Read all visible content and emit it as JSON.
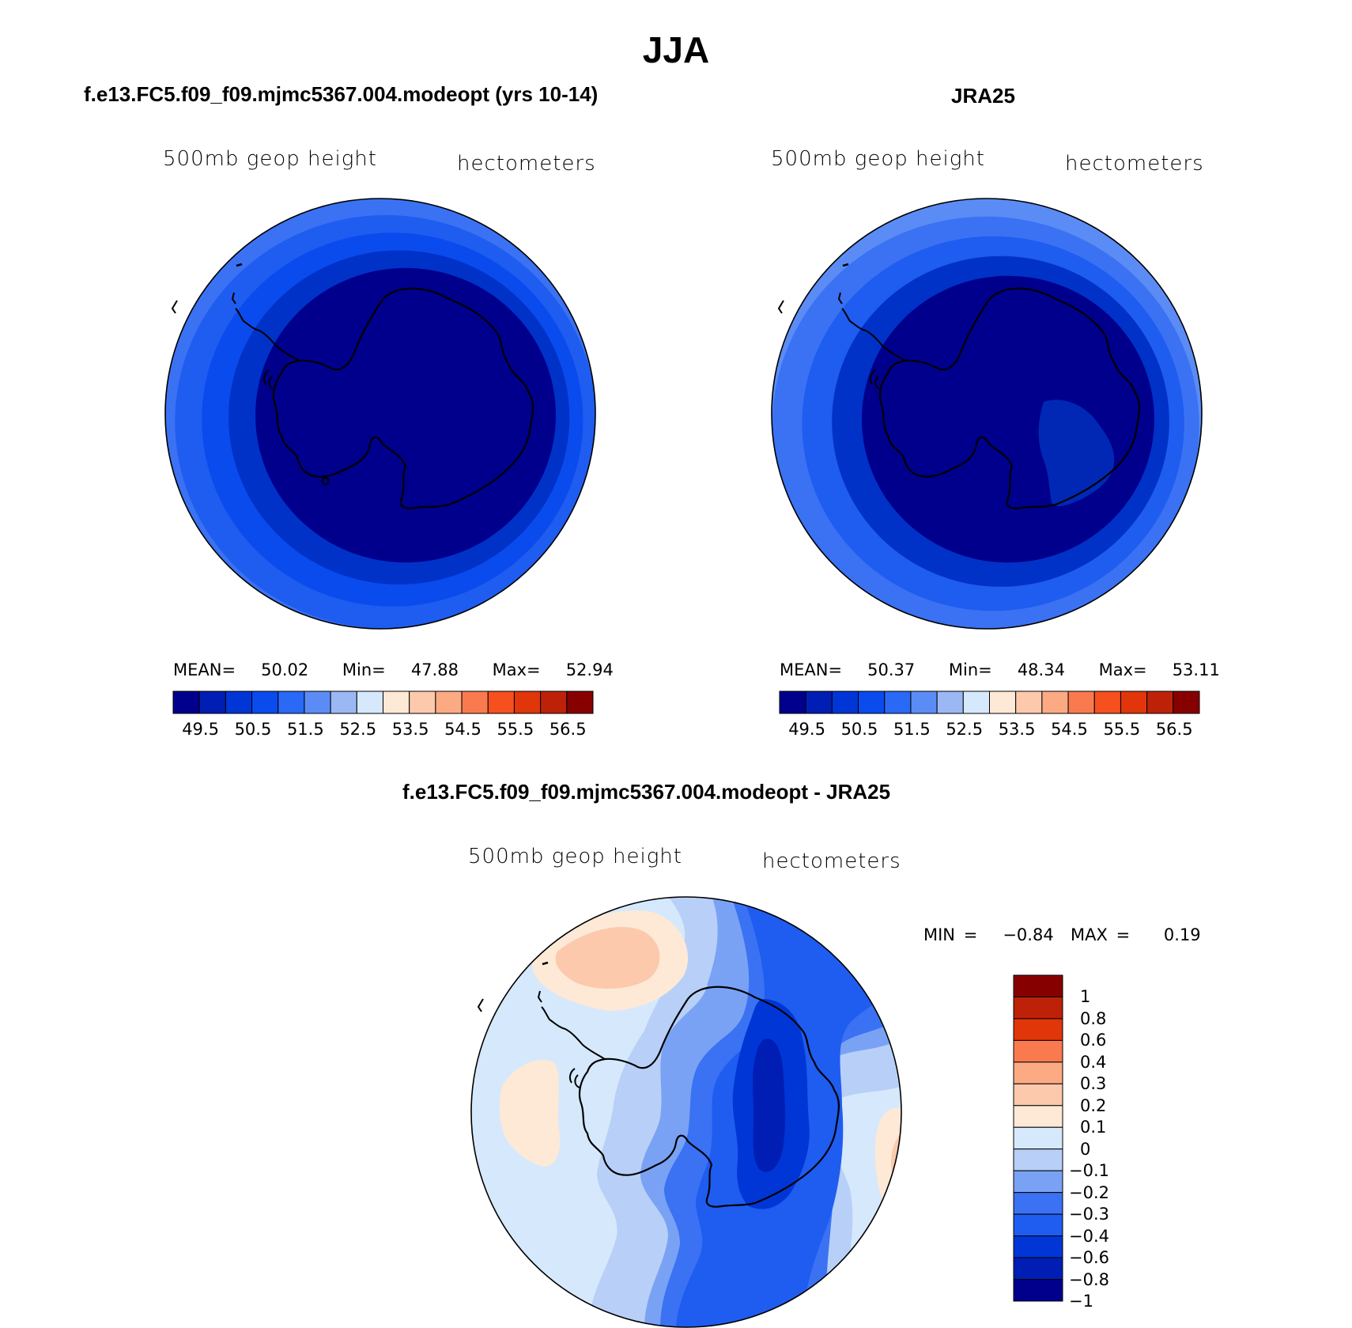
{
  "figure": {
    "title": "JJA"
  },
  "panels": [
    {
      "id": "model",
      "title": "f.e13.FC5.f09_f09.mjmc5367.004.modeopt (yrs 10-14)",
      "variable_label": "500mb  geop  height",
      "units_label": "hectometers",
      "stats": {
        "mean_label": "MEAN=",
        "mean": "50.02",
        "min_label": "Min=",
        "min": "47.88",
        "max_label": "Max=",
        "max": "52.94"
      },
      "colorbar": {
        "orientation": "horizontal",
        "colors": [
          "#00008c",
          "#001eb4",
          "#0036d6",
          "#0a4bee",
          "#2a68f6",
          "#5b8cf5",
          "#9bb8f5",
          "#d6e8fb",
          "#fde9d6",
          "#fcc9ac",
          "#fbaa83",
          "#f97a4f",
          "#f6501f",
          "#e0360a",
          "#bd2208",
          "#870000"
        ],
        "tick_labels": [
          "49.5",
          "50.5",
          "51.5",
          "52.5",
          "53.5",
          "54.5",
          "55.5",
          "56.5"
        ]
      },
      "map": {
        "projection": "south-polar-stereographic",
        "field": "500mb geopotential height, concentric contours decreasing toward the pole",
        "rings": [
          {
            "color": "#d6e8fb"
          },
          {
            "color": "#b8d0f8"
          },
          {
            "color": "#9bb8f5"
          },
          {
            "color": "#7aa2f4"
          },
          {
            "color": "#5b8cf5"
          },
          {
            "color": "#3a72f3"
          },
          {
            "color": "#1f5cf0"
          },
          {
            "color": "#0a4bee"
          },
          {
            "color": "#0032c8"
          },
          {
            "color": "#00008c"
          }
        ]
      }
    },
    {
      "id": "obs",
      "title": "JRA25",
      "variable_label": "500mb  geop  height",
      "units_label": "hectometers",
      "stats": {
        "mean_label": "MEAN=",
        "mean": "50.37",
        "min_label": "Min=",
        "min": "48.34",
        "max_label": "Max=",
        "max": "53.11"
      },
      "colorbar": {
        "orientation": "horizontal",
        "colors": [
          "#00008c",
          "#001eb4",
          "#0036d6",
          "#0a4bee",
          "#2a68f6",
          "#5b8cf5",
          "#9bb8f5",
          "#d6e8fb",
          "#fde9d6",
          "#fcc9ac",
          "#fbaa83",
          "#f97a4f",
          "#f6501f",
          "#e0360a",
          "#bd2208",
          "#870000"
        ],
        "tick_labels": [
          "49.5",
          "50.5",
          "51.5",
          "52.5",
          "53.5",
          "54.5",
          "55.5",
          "56.5"
        ]
      },
      "map": {
        "projection": "south-polar-stereographic",
        "field": "500mb geopotential height, concentric contours decreasing toward the pole",
        "rings": [
          {
            "color": "#e6f0fc"
          },
          {
            "color": "#d6e8fb"
          },
          {
            "color": "#b8d0f8"
          },
          {
            "color": "#9bb8f5"
          },
          {
            "color": "#7aa2f4"
          },
          {
            "color": "#5b8cf5"
          },
          {
            "color": "#3a72f3"
          },
          {
            "color": "#1f5cf0"
          },
          {
            "color": "#0032c8"
          },
          {
            "color": "#00008c"
          }
        ],
        "inner_patch_color": "#0028b4"
      }
    },
    {
      "id": "diff",
      "title": "f.e13.FC5.f09_f09.mjmc5367.004.modeopt - JRA25",
      "variable_label": "500mb  geop  height",
      "units_label": "hectometers",
      "stats": {
        "min_label": "MIN =",
        "min": "−0.84",
        "max_label": "MAX =",
        "max": "0.19"
      },
      "colorbar": {
        "orientation": "vertical",
        "colors_top_to_bottom": [
          "#870000",
          "#bd2208",
          "#e0360a",
          "#f97a4f",
          "#fbaa83",
          "#fcc9ac",
          "#fde9d6",
          "#d6e8fb",
          "#b8d0f8",
          "#7aa2f4",
          "#3a72f3",
          "#1f5cf0",
          "#0036d6",
          "#001eb4",
          "#00008c"
        ],
        "tick_labels": [
          "1",
          "0.8",
          "0.6",
          "0.4",
          "0.3",
          "0.2",
          "0.1",
          "0",
          "−0.1",
          "−0.2",
          "−0.3",
          "−0.4",
          "−0.6",
          "−0.8",
          "−1"
        ]
      },
      "map": {
        "projection": "south-polar-stereographic",
        "field": "500mb geopotential height difference (model minus JRA25)",
        "background_color": "#d6e8fb",
        "colors": {
          "pos_low": "#fde9d6",
          "pos_mid": "#fcc9ac",
          "neg_01": "#b8d0f8",
          "neg_02": "#7aa2f4",
          "neg_03": "#3a72f3",
          "neg_04": "#1f5cf0",
          "neg_06": "#0036d6",
          "neg_08": "#001eb4"
        }
      }
    }
  ]
}
